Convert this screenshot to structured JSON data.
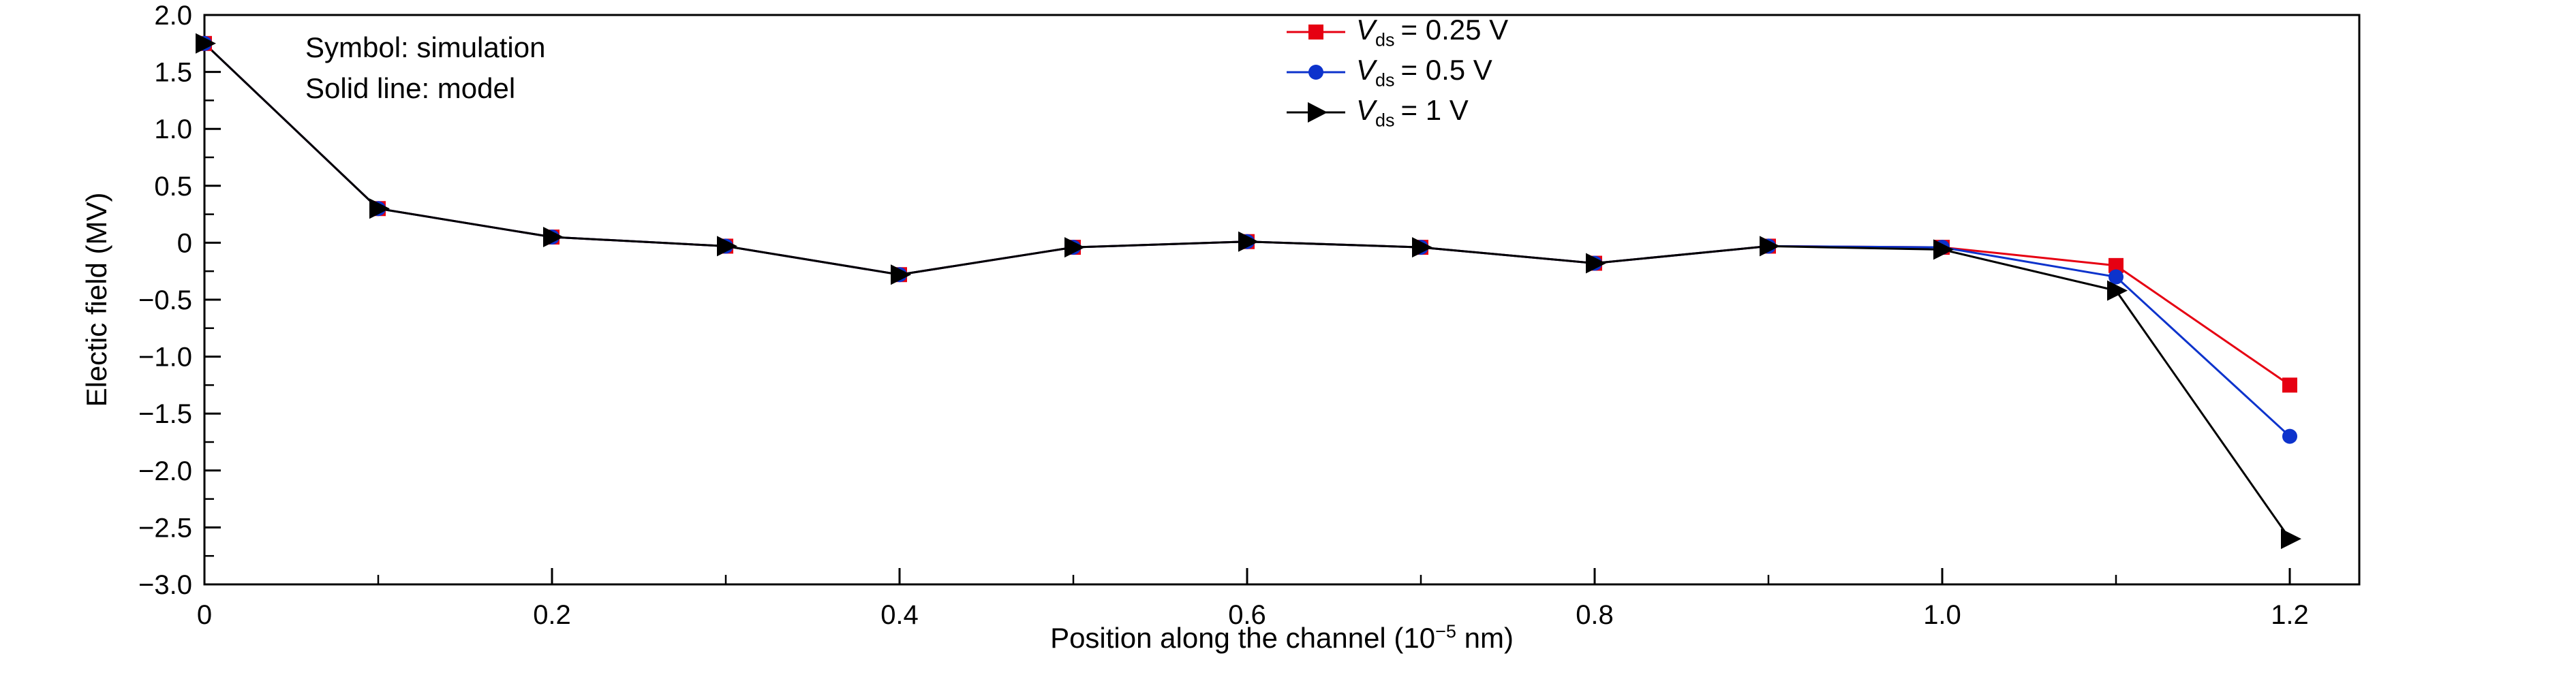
{
  "figure": {
    "background": "#ffffff"
  },
  "labels": {
    "xlabel_prefix": "Position along the channel (10",
    "xlabel_sup": "−5",
    "xlabel_suffix": " nm)"
  },
  "chart_data": {
    "type": "line",
    "title": "",
    "xlabel": "Position along the channel (10−5 nm)",
    "ylabel": "Electic field (MV)",
    "annotations": [
      "Symbol: simulation",
      "Solid line: model"
    ],
    "legend_position": "inside top, right of center",
    "grid": false,
    "xlim": [
      0,
      1.24
    ],
    "ylim": [
      -3.0,
      2.0
    ],
    "xticks": {
      "values": [
        0,
        0.2,
        0.4,
        0.6,
        0.8,
        1.0,
        1.2
      ],
      "labels": [
        "0",
        "0.2",
        "0.4",
        "0.6",
        "0.8",
        "1.0",
        "1.2"
      ]
    },
    "yticks": {
      "values": [
        2.0,
        1.5,
        1.0,
        0.5,
        0,
        -0.5,
        -1.0,
        -1.5,
        -2.0,
        -2.5,
        -3.0
      ],
      "labels": [
        "2.0",
        "1.5",
        "1.0",
        "0.5",
        "0",
        "−0.5",
        "−1.0",
        "−1.5",
        "−2.0",
        "−2.5",
        "−3.0"
      ]
    },
    "x": [
      0,
      0.1,
      0.2,
      0.3,
      0.4,
      0.5,
      0.6,
      0.7,
      0.8,
      0.9,
      1.0,
      1.1,
      1.2
    ],
    "series": [
      {
        "name": "Vds = 0.25 V",
        "marker": "square",
        "color": "#e60012",
        "legend": {
          "var": "V",
          "sub": "ds",
          "eq": "= 0.25 V"
        },
        "values": [
          1.75,
          0.3,
          0.05,
          -0.03,
          -0.28,
          -0.04,
          0.01,
          -0.04,
          -0.18,
          -0.03,
          -0.04,
          -0.2,
          -1.25
        ]
      },
      {
        "name": "Vds = 0.5 V",
        "marker": "circle",
        "color": "#0d33cc",
        "legend": {
          "var": "V",
          "sub": "ds",
          "eq": "= 0.5 V"
        },
        "values": [
          1.75,
          0.3,
          0.05,
          -0.03,
          -0.28,
          -0.04,
          0.01,
          -0.04,
          -0.18,
          -0.03,
          -0.04,
          -0.3,
          -1.7
        ]
      },
      {
        "name": "Vds = 1 V",
        "marker": "triangle-right",
        "color": "#000000",
        "legend": {
          "var": "V",
          "sub": "ds",
          "eq": "= 1 V"
        },
        "values": [
          1.75,
          0.3,
          0.05,
          -0.03,
          -0.28,
          -0.04,
          0.01,
          -0.04,
          -0.18,
          -0.03,
          -0.06,
          -0.42,
          -2.6
        ]
      }
    ]
  }
}
